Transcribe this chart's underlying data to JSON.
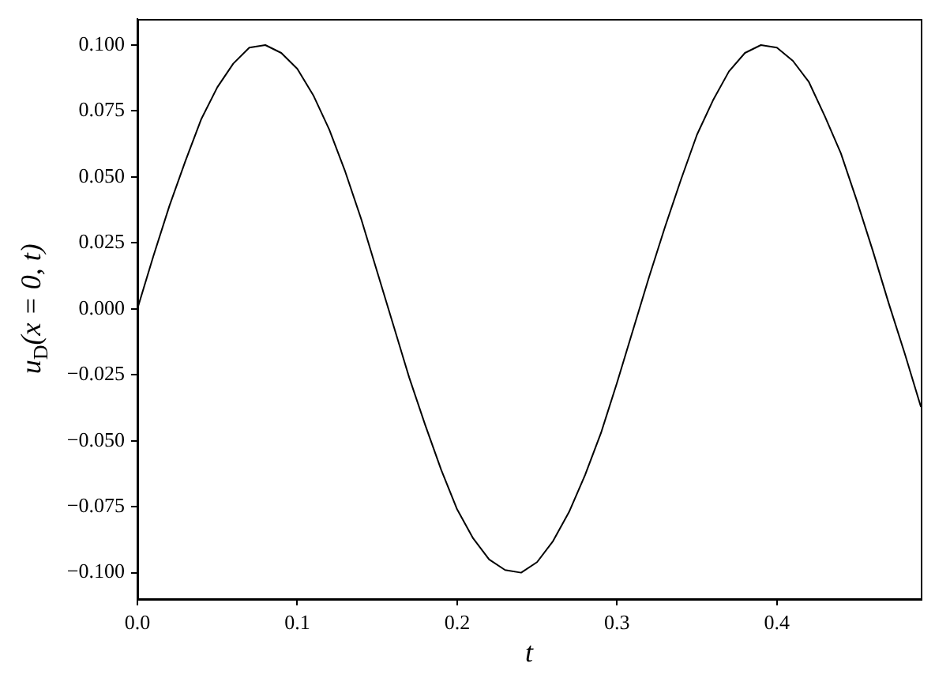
{
  "chart_data": {
    "type": "line",
    "xlabel": "t",
    "ylabel": "u$_{D}$(x = 0, t)",
    "x": [
      0,
      0.01,
      0.02,
      0.03,
      0.04,
      0.05,
      0.06,
      0.07,
      0.08,
      0.09,
      0.1,
      0.11,
      0.12,
      0.13,
      0.14,
      0.15,
      0.16,
      0.17,
      0.18,
      0.19,
      0.2,
      0.21,
      0.22,
      0.23,
      0.24,
      0.25,
      0.26,
      0.27,
      0.28,
      0.29,
      0.3,
      0.31,
      0.32,
      0.33,
      0.34,
      0.35,
      0.36,
      0.37,
      0.38,
      0.39,
      0.4,
      0.41,
      0.42,
      0.43,
      0.44,
      0.45,
      0.46,
      0.47,
      0.48,
      0.49
    ],
    "series": [
      {
        "color": "#000000",
        "values": [
          0,
          0.02,
          0.039,
          0.056,
          0.072,
          0.084,
          0.093,
          0.099,
          0.1,
          0.097,
          0.091,
          0.081,
          0.068,
          0.052,
          0.034,
          0.014,
          -0.006,
          -0.026,
          -0.044,
          -0.061,
          -0.076,
          -0.087,
          -0.095,
          -0.099,
          -0.1,
          -0.096,
          -0.088,
          -0.077,
          -0.063,
          -0.047,
          -0.028,
          -0.008,
          0.012,
          0.031,
          0.049,
          0.066,
          0.079,
          0.09,
          0.097,
          0.1,
          0.099,
          0.094,
          0.086,
          0.073,
          0.059,
          0.041,
          0.022,
          0.002,
          -0.017,
          -0.037
        ]
      }
    ],
    "xlim": [
      0,
      0.49
    ],
    "ylim": [
      -0.11,
      0.11
    ],
    "xticks": [
      {
        "value": 0,
        "label": "0.0"
      },
      0.1,
      0.2,
      0.3,
      0.4
    ],
    "yticks": [
      {
        "value": -0.1,
        "label": "−0.100"
      },
      {
        "value": -0.075,
        "label": "−0.075"
      },
      {
        "value": -0.05,
        "label": "−0.050"
      },
      {
        "value": -0.025,
        "label": "−0.025"
      },
      {
        "value": 0,
        "label": "0.000"
      },
      {
        "value": 0.025,
        "label": "0.025"
      },
      {
        "value": 0.05,
        "label": "0.050"
      },
      {
        "value": 0.075,
        "label": "0.075"
      },
      {
        "value": 0.1,
        "label": "0.100"
      }
    ]
  }
}
